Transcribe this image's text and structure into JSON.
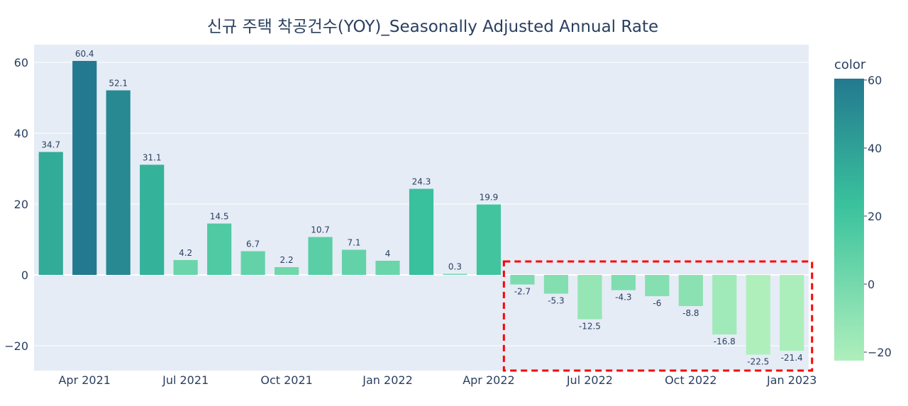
{
  "chart_data": {
    "type": "bar",
    "title": "신규 주택 착공건수(YOY)_Seasonally Adjusted Annual Rate",
    "xlabel": "",
    "ylabel": "",
    "categories": [
      "2021-03",
      "2021-04",
      "2021-05",
      "2021-06",
      "2021-07",
      "2021-08",
      "2021-09",
      "2021-10",
      "2021-11",
      "2021-12",
      "2022-01",
      "2022-02",
      "2022-03",
      "2022-04",
      "2022-05",
      "2022-06",
      "2022-07",
      "2022-08",
      "2022-09",
      "2022-10",
      "2022-11",
      "2022-12",
      "2023-01"
    ],
    "values": [
      34.7,
      60.4,
      52.1,
      31.1,
      4.2,
      14.5,
      6.7,
      2.2,
      10.7,
      7.1,
      4,
      24.3,
      0.3,
      19.9,
      -2.7,
      -5.3,
      -12.5,
      -4.3,
      -6,
      -8.8,
      -16.8,
      -22.5,
      -21.4
    ],
    "value_labels": [
      "34.7",
      "60.4",
      "52.1",
      "31.1",
      "4.2",
      "14.5",
      "6.7",
      "2.2",
      "10.7",
      "7.1",
      "4",
      "24.3",
      "0.3",
      "19.9",
      "-2.7",
      "-5.3",
      "-12.5",
      "-4.3",
      "-6",
      "-8.8",
      "-16.8",
      "-22.5",
      "-21.4"
    ],
    "ylim": [
      -27,
      65
    ],
    "y_ticks": [
      "60",
      "40",
      "20",
      "0",
      "−20"
    ],
    "x_ticks": [
      "Apr 2021",
      "Jul 2021",
      "Oct 2021",
      "Jan 2022",
      "Apr 2022",
      "Jul 2022",
      "Oct 2022",
      "Jan 2023"
    ],
    "grid": true,
    "colorbar": {
      "title": "color",
      "ticks": [
        "60",
        "40",
        "20",
        "0",
        "−20"
      ],
      "range": [
        -22.5,
        60.4
      ],
      "colors": [
        "#afefbc",
        "#3ac29d",
        "#23798f"
      ]
    },
    "highlight": {
      "from_category": "2022-05",
      "to_category": "2023-01",
      "style": "dashed",
      "color": "#ff0000"
    }
  }
}
